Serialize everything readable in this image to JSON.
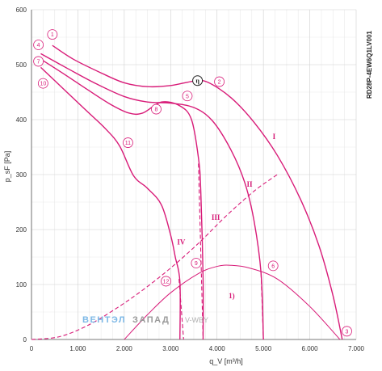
{
  "chart_data": {
    "type": "line",
    "model_code": "RD28P-4EW6Q1LV001",
    "xlabel": "q_V [m³/h]",
    "ylabel": "p_sF [Pa]",
    "xlim": [
      0,
      7000
    ],
    "ylim": [
      0,
      600
    ],
    "x_ticks": [
      "0",
      "1.000",
      "2.000",
      "3.000",
      "4.000",
      "5.000",
      "6.000",
      "7.000"
    ],
    "y_ticks": [
      "0",
      "100",
      "200",
      "300",
      "400",
      "500",
      "600"
    ],
    "grid": true,
    "colors": {
      "curve": "#d81b78",
      "grid": "#d0d0d0"
    },
    "series": [
      {
        "points": [
          [
            450,
            535
          ],
          [
            900,
            510
          ],
          [
            1500,
            485
          ],
          [
            2000,
            467
          ],
          [
            2500,
            460
          ],
          [
            3000,
            462
          ],
          [
            3500,
            470
          ],
          [
            3800,
            468
          ],
          [
            4300,
            440
          ],
          [
            4800,
            395
          ],
          [
            5300,
            335
          ],
          [
            5800,
            255
          ],
          [
            6200,
            170
          ],
          [
            6500,
            80
          ],
          [
            6700,
            0
          ]
        ]
      },
      {
        "points": [
          [
            200,
            520
          ],
          [
            800,
            492
          ],
          [
            1400,
            465
          ],
          [
            2000,
            442
          ],
          [
            2500,
            432
          ],
          [
            3000,
            430
          ],
          [
            3500,
            422
          ],
          [
            3900,
            398
          ],
          [
            4300,
            345
          ],
          [
            4600,
            285
          ],
          [
            4800,
            215
          ],
          [
            4950,
            120
          ],
          [
            5000,
            0
          ]
        ]
      },
      {
        "points": [
          [
            200,
            510
          ],
          [
            700,
            483
          ],
          [
            1200,
            455
          ],
          [
            1700,
            428
          ],
          [
            2100,
            412
          ],
          [
            2400,
            412
          ],
          [
            2800,
            432
          ],
          [
            3200,
            425
          ],
          [
            3450,
            400
          ],
          [
            3600,
            330
          ],
          [
            3650,
            270
          ],
          [
            3700,
            110
          ],
          [
            3700,
            0
          ]
        ]
      },
      {
        "points": [
          [
            200,
            495
          ],
          [
            700,
            455
          ],
          [
            1200,
            415
          ],
          [
            1600,
            383
          ],
          [
            1900,
            352
          ],
          [
            2200,
            298
          ],
          [
            2500,
            275
          ],
          [
            2800,
            245
          ],
          [
            3000,
            190
          ],
          [
            3100,
            150
          ],
          [
            3200,
            105
          ],
          [
            3200,
            0
          ]
        ]
      },
      {
        "points": [
          [
            0,
            0
          ],
          [
            600,
            5
          ],
          [
            1200,
            25
          ],
          [
            1800,
            55
          ],
          [
            2400,
            90
          ],
          [
            3000,
            130
          ],
          [
            3600,
            175
          ],
          [
            4200,
            225
          ],
          [
            4800,
            270
          ],
          [
            5300,
            300
          ]
        ]
      },
      {
        "points": [
          [
            2000,
            0
          ],
          [
            2500,
            45
          ],
          [
            3000,
            85
          ],
          [
            3600,
            120
          ],
          [
            4000,
            133
          ],
          [
            4300,
            135
          ],
          [
            4700,
            130
          ],
          [
            5300,
            110
          ],
          [
            6000,
            60
          ],
          [
            6650,
            0
          ]
        ]
      }
    ],
    "curve_labels": [
      {
        "text": "I",
        "x": 5200,
        "y": 365
      },
      {
        "text": "II",
        "x": 4640,
        "y": 278
      },
      {
        "text": "III",
        "x": 3880,
        "y": 218
      },
      {
        "text": "IV",
        "x": 3140,
        "y": 173
      },
      {
        "text": "1)",
        "x": 4250,
        "y": 75
      }
    ],
    "markers": [
      {
        "text": "1",
        "x": 450,
        "y": 555
      },
      {
        "text": "2",
        "x": 4050,
        "y": 469
      },
      {
        "text": "3",
        "x": 6800,
        "y": 15
      },
      {
        "text": "4",
        "x": 150,
        "y": 536
      },
      {
        "text": "5",
        "x": 3360,
        "y": 443
      },
      {
        "text": "6",
        "x": 5210,
        "y": 134
      },
      {
        "text": "7",
        "x": 150,
        "y": 506
      },
      {
        "text": "8",
        "x": 2690,
        "y": 419
      },
      {
        "text": "9",
        "x": 3550,
        "y": 139
      },
      {
        "text": "10",
        "x": 250,
        "y": 466
      },
      {
        "text": "11",
        "x": 2080,
        "y": 358
      },
      {
        "text": "12",
        "x": 2900,
        "y": 106
      }
    ],
    "eta_marker": {
      "text": "η",
      "x": 3580,
      "y": 471
    }
  },
  "watermark": {
    "part1": "ВЕНТЭЛ",
    "part2": "ЗАПАД",
    "part3": "V-WBY"
  }
}
